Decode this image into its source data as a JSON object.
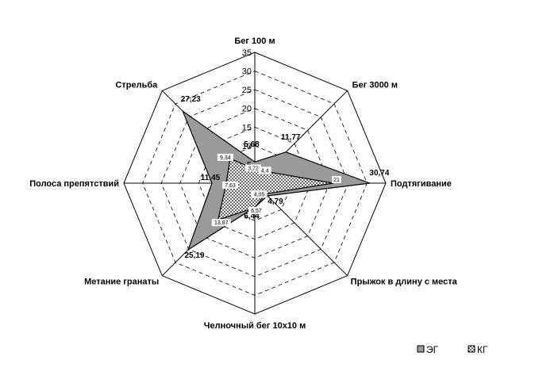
{
  "chart_data": {
    "type": "radar",
    "categories": [
      "Бег 100 м",
      "Бег 3000 м",
      "Подтягивание",
      "Прыжок в длину с места",
      "Челночный бег 10х10 м",
      "Метание гранаты",
      "Полоса препятствий",
      "Стрельба"
    ],
    "r_ticks": [
      "5",
      "10",
      "15",
      "20",
      "25",
      "30",
      "35"
    ],
    "rlim": [
      0,
      35
    ],
    "grid": true,
    "legend": "bottom-right",
    "series": [
      {
        "name": "ЭГ",
        "color": "#9a9a9a",
        "values": [
          5.68,
          11.77,
          30.74,
          4.79,
          6.44,
          25.19,
          11.45,
          27.23
        ],
        "labels": [
          "5,68",
          "11,77",
          "30,74",
          "4,79",
          "6,44",
          "25,19",
          "11,45",
          "27,23"
        ]
      },
      {
        "name": "КГ",
        "pattern": "dots",
        "values": [
          3.72,
          4.4,
          21,
          4.05,
          6.57,
          13.87,
          7.63,
          9.34
        ],
        "labels": [
          "3,72",
          "4,4",
          "21",
          "4,05",
          "6,57",
          "13,87",
          "7,63",
          "9,34"
        ]
      }
    ]
  }
}
